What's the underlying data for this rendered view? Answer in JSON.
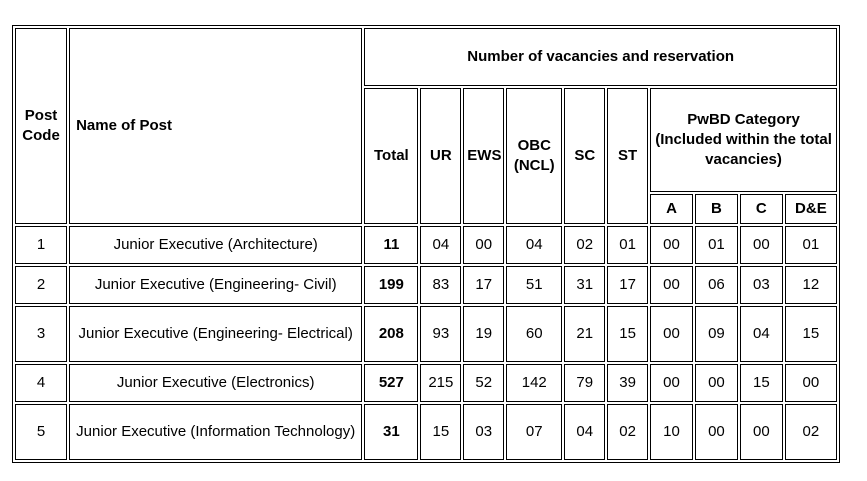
{
  "headers": {
    "post_code": "Post Code",
    "name_of_post": "Name of Post",
    "vacancies_group": "Number of vacancies and reservation",
    "total": "Total",
    "ur": "UR",
    "ews": "EWS",
    "obc": "OBC (NCL)",
    "sc": "SC",
    "st": "ST",
    "pwbd": "PwBD Category (Included within the total vacancies)",
    "pwbd_a": "A",
    "pwbd_b": "B",
    "pwbd_c": "C",
    "pwbd_de": "D&E"
  },
  "rows": [
    {
      "code": "1",
      "name": "Junior Executive (Architecture)",
      "total": "11",
      "ur": "04",
      "ews": "00",
      "obc": "04",
      "sc": "02",
      "st": "01",
      "a": "00",
      "b": "01",
      "c": "00",
      "de": "01"
    },
    {
      "code": "2",
      "name": "Junior Executive (Engineering- Civil)",
      "total": "199",
      "ur": "83",
      "ews": "17",
      "obc": "51",
      "sc": "31",
      "st": "17",
      "a": "00",
      "b": "06",
      "c": "03",
      "de": "12"
    },
    {
      "code": "3",
      "name": "Junior Executive (Engineering- Electrical)",
      "total": "208",
      "ur": "93",
      "ews": "19",
      "obc": "60",
      "sc": "21",
      "st": "15",
      "a": "00",
      "b": "09",
      "c": "04",
      "de": "15"
    },
    {
      "code": "4",
      "name": "Junior Executive (Electronics)",
      "total": "527",
      "ur": "215",
      "ews": "52",
      "obc": "142",
      "sc": "79",
      "st": "39",
      "a": "00",
      "b": "00",
      "c": "15",
      "de": "00"
    },
    {
      "code": "5",
      "name": "Junior Executive (Information Technology)",
      "total": "31",
      "ur": "15",
      "ews": "03",
      "obc": "07",
      "sc": "04",
      "st": "02",
      "a": "10",
      "b": "00",
      "c": "00",
      "de": "02"
    }
  ]
}
